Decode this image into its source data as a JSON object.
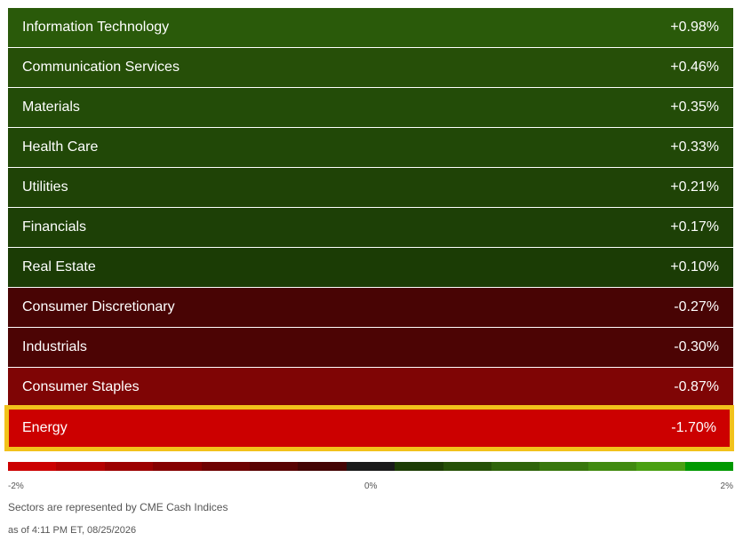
{
  "sectors": [
    {
      "name": "Information Technology",
      "change": "+0.98%",
      "value": 0.98,
      "color": "#2a5a0a"
    },
    {
      "name": "Communication Services",
      "change": "+0.46%",
      "value": 0.46,
      "color": "#264f08"
    },
    {
      "name": "Materials",
      "change": "+0.35%",
      "value": 0.35,
      "color": "#234c08"
    },
    {
      "name": "Health Care",
      "change": "+0.33%",
      "value": 0.33,
      "color": "#214807"
    },
    {
      "name": "Utilities",
      "change": "+0.21%",
      "value": 0.21,
      "color": "#1f4306"
    },
    {
      "name": "Financials",
      "change": "+0.17%",
      "value": 0.17,
      "color": "#1d4006"
    },
    {
      "name": "Real Estate",
      "change": "+0.10%",
      "value": 0.1,
      "color": "#1b3c05"
    },
    {
      "name": "Consumer Discretionary",
      "change": "-0.27%",
      "value": -0.27,
      "color": "#480404"
    },
    {
      "name": "Industrials",
      "change": "-0.30%",
      "value": -0.3,
      "color": "#4c0404"
    },
    {
      "name": "Consumer Staples",
      "change": "-0.87%",
      "value": -0.87,
      "color": "#7f0505"
    },
    {
      "name": "Energy",
      "change": "-1.70%",
      "value": -1.7,
      "color": "#cc0000",
      "selected": true
    }
  ],
  "scale": {
    "min_label": "-2%",
    "mid_label": "0%",
    "max_label": "2%",
    "colors": [
      "#cc0000",
      "#b50000",
      "#9c0000",
      "#850000",
      "#6e0202",
      "#590303",
      "#440404",
      "#1a1a1a",
      "#1d3d06",
      "#265108",
      "#2f640b",
      "#38770d",
      "#418a10",
      "#4aa012",
      "#009900"
    ]
  },
  "colors": {
    "highlight": "#f2c21b"
  },
  "footnote": {
    "source": "Sectors are represented by CME Cash Indices",
    "timestamp": "as of 4:11 PM ET, 08/25/2026"
  }
}
